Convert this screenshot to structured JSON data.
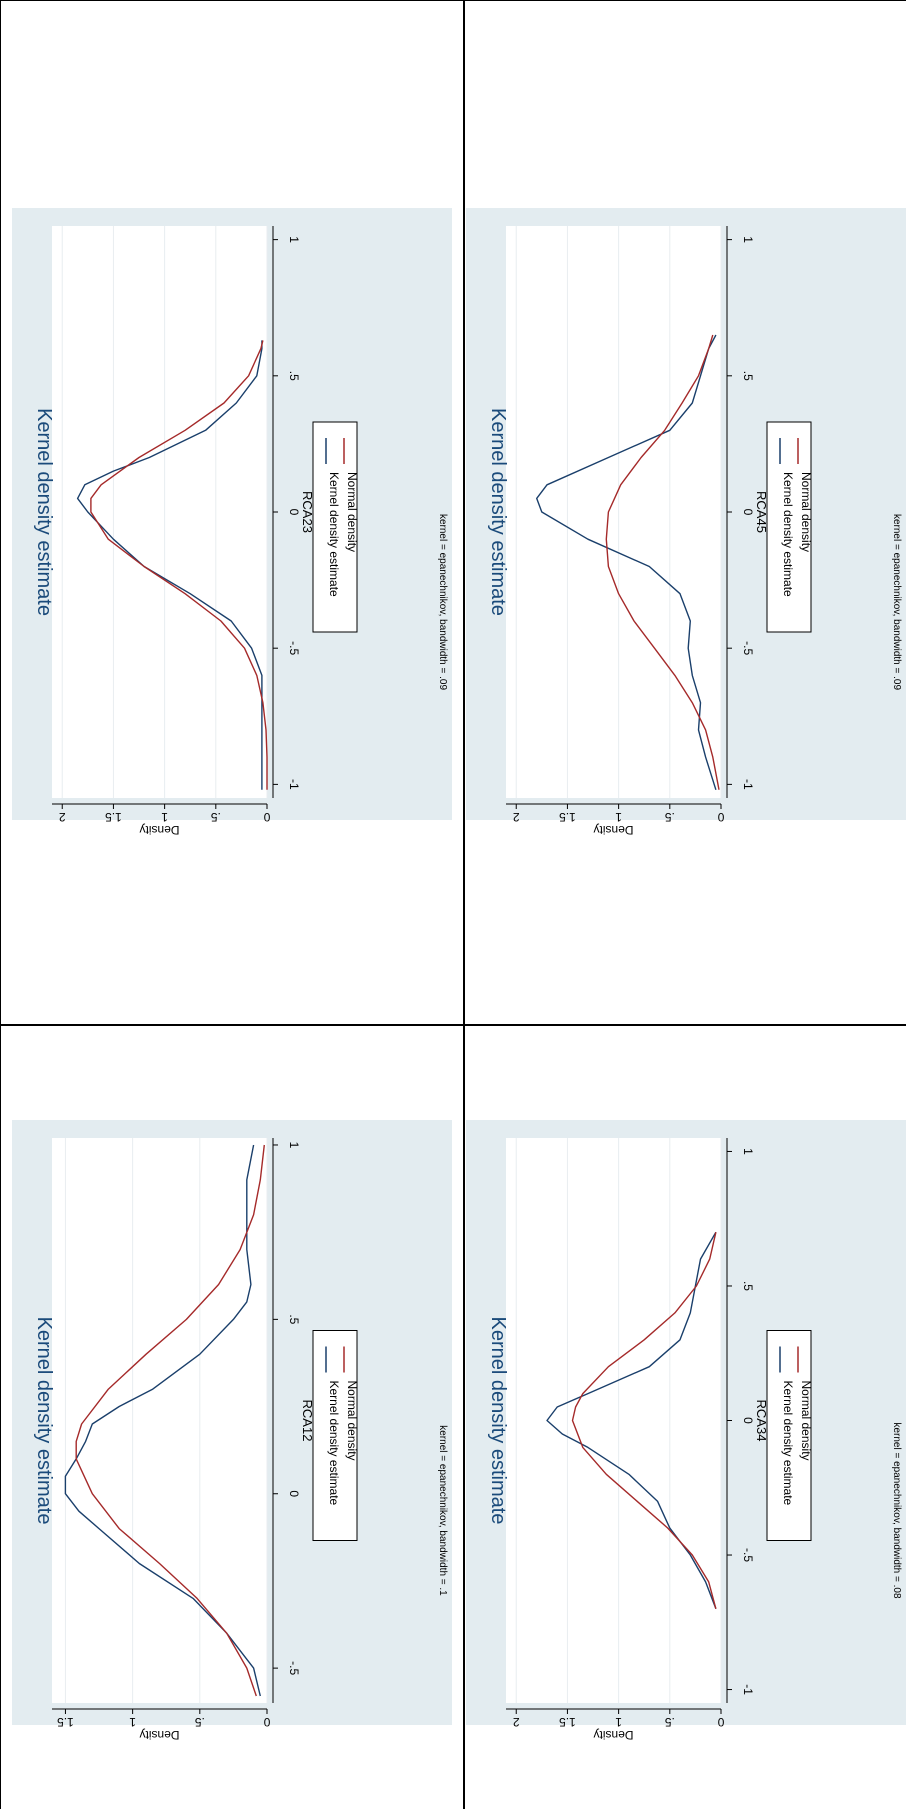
{
  "colors": {
    "panel_bg": "#e3ecf0",
    "plot_bg": "#ffffff",
    "grid": "#e8edf0",
    "kde": "#1a3f6b",
    "normal": "#a52a2a",
    "title": "#1a4a7a",
    "text": "#000000"
  },
  "chart_data": [
    {
      "type": "line",
      "title": "Kernel density estimate",
      "xlabel": "RCA12",
      "ylabel": "Density",
      "note": "kernel = epanechnikov, bandwidth = .1",
      "xlim": [
        -0.6,
        1.02
      ],
      "ylim": [
        0,
        1.6
      ],
      "xticks": [
        -0.5,
        0,
        0.5,
        1
      ],
      "xticklabels": [
        "-.5",
        "0",
        ".5",
        "1"
      ],
      "yticks": [
        0,
        0.5,
        1,
        1.5
      ],
      "yticklabels": [
        "0",
        ".5",
        "1",
        "1.5"
      ],
      "legend": [
        "Kernel density estimate",
        "Normal density"
      ],
      "series": [
        {
          "name": "Kernel density estimate",
          "x": [
            -0.58,
            -0.5,
            -0.4,
            -0.3,
            -0.2,
            -0.1,
            -0.05,
            0.0,
            0.05,
            0.1,
            0.15,
            0.2,
            0.25,
            0.3,
            0.4,
            0.5,
            0.55,
            0.6,
            0.7,
            0.8,
            0.9,
            1.0
          ],
          "values": [
            0.05,
            0.1,
            0.3,
            0.55,
            0.95,
            1.25,
            1.4,
            1.5,
            1.5,
            1.42,
            1.35,
            1.3,
            1.1,
            0.85,
            0.5,
            0.25,
            0.15,
            0.12,
            0.15,
            0.15,
            0.15,
            0.1
          ]
        },
        {
          "name": "Normal density",
          "x": [
            -0.58,
            -0.5,
            -0.4,
            -0.3,
            -0.2,
            -0.1,
            0.0,
            0.1,
            0.15,
            0.2,
            0.3,
            0.4,
            0.5,
            0.6,
            0.7,
            0.8,
            0.9,
            1.0
          ],
          "values": [
            0.08,
            0.15,
            0.3,
            0.52,
            0.8,
            1.1,
            1.3,
            1.42,
            1.42,
            1.38,
            1.18,
            0.9,
            0.6,
            0.36,
            0.2,
            0.1,
            0.05,
            0.02
          ]
        }
      ]
    },
    {
      "type": "line",
      "title": "Kernel density estimate",
      "xlabel": "RCA23",
      "ylabel": "Density",
      "note": "kernel = epanechnikov, bandwidth = .09",
      "xlim": [
        -1.05,
        1.05
      ],
      "ylim": [
        0,
        2.1
      ],
      "xticks": [
        -1,
        -0.5,
        0,
        0.5,
        1
      ],
      "xticklabels": [
        "-1",
        "-.5",
        "0",
        ".5",
        "1"
      ],
      "yticks": [
        0,
        0.5,
        1,
        1.5,
        2
      ],
      "yticklabels": [
        "0",
        ".5",
        "1",
        "1.5",
        "2"
      ],
      "legend": [
        "Kernel density estimate",
        "Normal density"
      ],
      "series": [
        {
          "name": "Kernel density estimate",
          "x": [
            -1.02,
            -0.9,
            -0.8,
            -0.7,
            -0.6,
            -0.5,
            -0.4,
            -0.3,
            -0.2,
            -0.1,
            0.0,
            0.05,
            0.1,
            0.15,
            0.2,
            0.3,
            0.4,
            0.5,
            0.6,
            0.63
          ],
          "values": [
            0.05,
            0.05,
            0.05,
            0.05,
            0.05,
            0.15,
            0.35,
            0.75,
            1.2,
            1.5,
            1.75,
            1.85,
            1.78,
            1.5,
            1.15,
            0.6,
            0.3,
            0.1,
            0.05,
            0.05
          ]
        },
        {
          "name": "Normal density",
          "x": [
            -1.02,
            -0.9,
            -0.8,
            -0.7,
            -0.6,
            -0.5,
            -0.4,
            -0.3,
            -0.2,
            -0.1,
            0.0,
            0.05,
            0.1,
            0.2,
            0.3,
            0.4,
            0.5,
            0.6,
            0.63
          ],
          "values": [
            0.0,
            0.0,
            0.01,
            0.04,
            0.1,
            0.22,
            0.45,
            0.8,
            1.2,
            1.55,
            1.72,
            1.72,
            1.62,
            1.25,
            0.8,
            0.42,
            0.18,
            0.06,
            0.04
          ]
        }
      ]
    },
    {
      "type": "line",
      "title": "Kernel density estimate",
      "xlabel": "RCA34",
      "ylabel": "Density",
      "note": "kernel = epanechnikov, bandwidth = .08",
      "xlim": [
        -1.05,
        1.05
      ],
      "ylim": [
        0,
        2.1
      ],
      "xticks": [
        -1,
        -0.5,
        0,
        0.5,
        1
      ],
      "xticklabels": [
        "-1",
        "-.5",
        "0",
        ".5",
        "1"
      ],
      "yticks": [
        0,
        0.5,
        1,
        1.5,
        2
      ],
      "yticklabels": [
        "0",
        ".5",
        "1",
        "1.5",
        "2"
      ],
      "legend": [
        "Kernel density estimate",
        "Normal density"
      ],
      "series": [
        {
          "name": "Kernel density estimate",
          "x": [
            -0.7,
            -0.6,
            -0.5,
            -0.4,
            -0.3,
            -0.2,
            -0.1,
            -0.05,
            0.0,
            0.05,
            0.1,
            0.2,
            0.3,
            0.4,
            0.5,
            0.6,
            0.7
          ],
          "values": [
            0.05,
            0.15,
            0.3,
            0.5,
            0.62,
            0.9,
            1.3,
            1.55,
            1.7,
            1.6,
            1.3,
            0.7,
            0.4,
            0.3,
            0.25,
            0.2,
            0.05
          ]
        },
        {
          "name": "Normal density",
          "x": [
            -0.7,
            -0.6,
            -0.5,
            -0.4,
            -0.3,
            -0.2,
            -0.1,
            0.0,
            0.05,
            0.1,
            0.2,
            0.3,
            0.4,
            0.5,
            0.6,
            0.7
          ],
          "values": [
            0.05,
            0.12,
            0.28,
            0.52,
            0.82,
            1.12,
            1.35,
            1.45,
            1.42,
            1.35,
            1.1,
            0.75,
            0.45,
            0.24,
            0.11,
            0.05
          ]
        }
      ]
    },
    {
      "type": "line",
      "title": "Kernel density estimate",
      "xlabel": "RCA45",
      "ylabel": "Density",
      "note": "kernel = epanechnikov, bandwidth = .09",
      "xlim": [
        -1.05,
        1.05
      ],
      "ylim": [
        0,
        2.1
      ],
      "xticks": [
        -1,
        -0.5,
        0,
        0.5,
        1
      ],
      "xticklabels": [
        "-1",
        "-.5",
        "0",
        ".5",
        "1"
      ],
      "yticks": [
        0,
        0.5,
        1,
        1.5,
        2
      ],
      "yticklabels": [
        "0",
        ".5",
        "1",
        "1.5",
        "2"
      ],
      "legend": [
        "Kernel density estimate",
        "Normal density"
      ],
      "series": [
        {
          "name": "Kernel density estimate",
          "x": [
            -1.02,
            -0.9,
            -0.8,
            -0.7,
            -0.6,
            -0.5,
            -0.4,
            -0.3,
            -0.2,
            -0.1,
            0.0,
            0.05,
            0.1,
            0.2,
            0.3,
            0.4,
            0.5,
            0.6,
            0.65
          ],
          "values": [
            0.05,
            0.15,
            0.22,
            0.2,
            0.28,
            0.32,
            0.3,
            0.4,
            0.7,
            1.3,
            1.75,
            1.8,
            1.7,
            1.1,
            0.5,
            0.28,
            0.2,
            0.12,
            0.05
          ]
        },
        {
          "name": "Normal density",
          "x": [
            -1.02,
            -0.9,
            -0.8,
            -0.7,
            -0.6,
            -0.5,
            -0.4,
            -0.3,
            -0.2,
            -0.1,
            0.0,
            0.1,
            0.2,
            0.3,
            0.4,
            0.5,
            0.6,
            0.65
          ],
          "values": [
            0.02,
            0.08,
            0.15,
            0.28,
            0.45,
            0.65,
            0.85,
            1.0,
            1.1,
            1.12,
            1.1,
            0.98,
            0.78,
            0.55,
            0.38,
            0.22,
            0.12,
            0.08
          ]
        }
      ]
    }
  ]
}
